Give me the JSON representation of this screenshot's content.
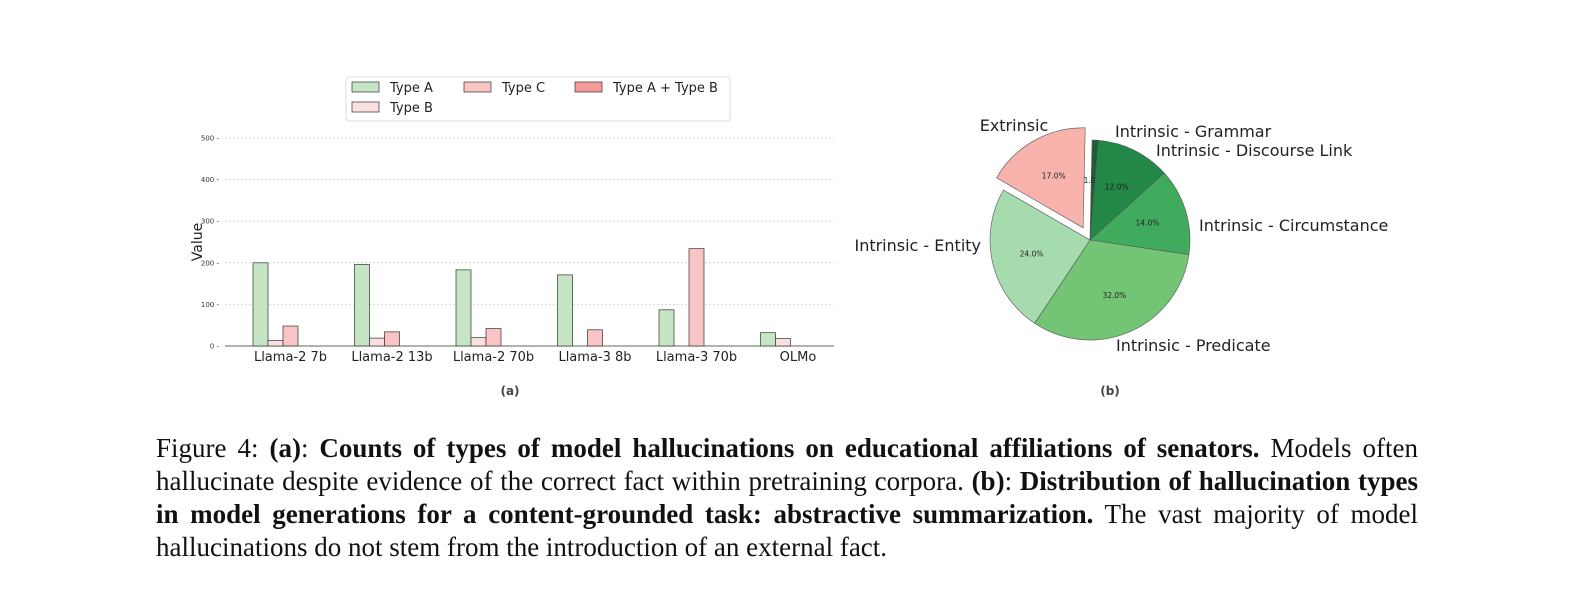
{
  "chart_data": [
    {
      "type": "bar",
      "panel_label": "(a)",
      "categories": [
        "Llama-2 7b",
        "Llama-2 13b",
        "Llama-2 70b",
        "Llama-3 8b",
        "Llama-3 70b",
        "OLMo"
      ],
      "series": [
        {
          "name": "Type A",
          "color": "#c6e5c4",
          "values": [
            200,
            196,
            183,
            171,
            87,
            32
          ]
        },
        {
          "name": "Type B",
          "color": "#fbe0e0",
          "values": [
            13,
            19,
            20,
            0,
            0,
            18
          ]
        },
        {
          "name": "Type C",
          "color": "#f8c4c4",
          "values": [
            48,
            34,
            42,
            39,
            234,
            0
          ]
        },
        {
          "name": "Type A + Type B",
          "color": "#f59a9a",
          "values": [
            0,
            0,
            0,
            0,
            0,
            0
          ]
        }
      ],
      "ylabel": "Value",
      "xlabel": "",
      "ylim": [
        0,
        500
      ],
      "yticks": [
        0,
        100,
        200,
        300,
        400,
        500
      ],
      "grid": true,
      "legend_position": "top"
    },
    {
      "type": "pie",
      "panel_label": "(b)",
      "slices": [
        {
          "label": "Extrinsic",
          "value": 17.0,
          "pct_label": "17.0%",
          "color": "#f8b3ad",
          "exploded": true
        },
        {
          "label": "Intrinsic - Grammar",
          "value": 1.0,
          "pct_label": "1.0%",
          "color": "#1e5e36",
          "exploded": false
        },
        {
          "label": "Intrinsic - Discourse Link",
          "value": 12.0,
          "pct_label": "12.0%",
          "color": "#238747",
          "exploded": false
        },
        {
          "label": "Intrinsic - Circumstance",
          "value": 14.0,
          "pct_label": "14.0%",
          "color": "#41ab5d",
          "exploded": false
        },
        {
          "label": "Intrinsic - Predicate",
          "value": 32.0,
          "pct_label": "32.0%",
          "color": "#74c476",
          "exploded": false
        },
        {
          "label": "Intrinsic - Entity",
          "value": 24.0,
          "pct_label": "24.0%",
          "color": "#a6dbad",
          "exploded": false
        }
      ]
    }
  ],
  "caption": {
    "prefix": "Figure 4: ",
    "a_label": "(a)",
    "sep1": ": ",
    "a_title": "Counts of types of model hallucinations on educational affiliations of senators.",
    "a_text": " Models often hallucinate despite evidence of the correct fact within pretraining corpora. ",
    "b_label": "(b)",
    "sep2": ": ",
    "b_title": "Distribution of hallucination types in model generations for a content-grounded task: abstractive summarization.",
    "b_text": " The vast majority of model hallucinations do not stem from the introduction of an external fact."
  }
}
